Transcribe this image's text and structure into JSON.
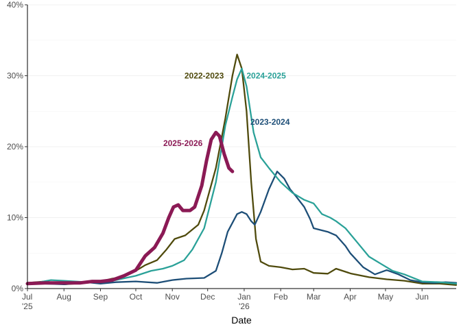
{
  "chart_data": {
    "type": "line",
    "title": "",
    "xlabel": "Date",
    "ylabel": "",
    "x_unit": "days since Jul 1",
    "xlim": [
      0,
      364
    ],
    "ylim": [
      0,
      40
    ],
    "grid": true,
    "y_ticks": [
      {
        "value": 0,
        "label": "0%"
      },
      {
        "value": 10,
        "label": "10%"
      },
      {
        "value": 20,
        "label": "20%"
      },
      {
        "value": 30,
        "label": "30%"
      },
      {
        "value": 40,
        "label": "40%"
      }
    ],
    "x_ticks": [
      {
        "value": 0,
        "label": "Jul",
        "sub": "'25"
      },
      {
        "value": 31,
        "label": "Aug",
        "sub": ""
      },
      {
        "value": 62,
        "label": "Sep",
        "sub": ""
      },
      {
        "value": 92,
        "label": "Oct",
        "sub": ""
      },
      {
        "value": 123,
        "label": "Nov",
        "sub": ""
      },
      {
        "value": 153,
        "label": "Dec",
        "sub": ""
      },
      {
        "value": 184,
        "label": "Jan",
        "sub": "'26"
      },
      {
        "value": 215,
        "label": "Feb",
        "sub": ""
      },
      {
        "value": 243,
        "label": "Mar",
        "sub": ""
      },
      {
        "value": 274,
        "label": "Apr",
        "sub": ""
      },
      {
        "value": 304,
        "label": "May",
        "sub": ""
      },
      {
        "value": 335,
        "label": "Jun",
        "sub": ""
      }
    ],
    "series": [
      {
        "name": "2022-2023",
        "color": "#4f4a0c",
        "width": 2.3,
        "label_anchor": [
          150,
          30
        ],
        "points": [
          [
            0,
            0.8
          ],
          [
            15,
            1.0
          ],
          [
            31,
            0.6
          ],
          [
            50,
            0.8
          ],
          [
            62,
            1.0
          ],
          [
            72,
            1.4
          ],
          [
            80,
            1.6
          ],
          [
            92,
            2.5
          ],
          [
            100,
            3.3
          ],
          [
            110,
            4.0
          ],
          [
            118,
            5.5
          ],
          [
            125,
            7.0
          ],
          [
            134,
            7.5
          ],
          [
            145,
            9.0
          ],
          [
            150,
            11.0
          ],
          [
            160,
            17.0
          ],
          [
            168,
            24.0
          ],
          [
            174,
            30.0
          ],
          [
            178,
            33.0
          ],
          [
            182,
            31.0
          ],
          [
            186,
            25.0
          ],
          [
            190,
            15.0
          ],
          [
            194,
            7.0
          ],
          [
            198,
            3.8
          ],
          [
            205,
            3.2
          ],
          [
            215,
            3.0
          ],
          [
            225,
            2.7
          ],
          [
            235,
            2.8
          ],
          [
            243,
            2.2
          ],
          [
            255,
            2.1
          ],
          [
            262,
            2.8
          ],
          [
            275,
            2.1
          ],
          [
            290,
            1.6
          ],
          [
            305,
            1.3
          ],
          [
            320,
            1.1
          ],
          [
            335,
            0.7
          ],
          [
            350,
            0.7
          ],
          [
            364,
            0.5
          ]
        ]
      },
      {
        "name": "2023-2024",
        "color": "#1d4e77",
        "width": 2.3,
        "label_anchor": [
          206,
          23.5
        ],
        "points": [
          [
            0,
            0.8
          ],
          [
            15,
            0.7
          ],
          [
            31,
            0.6
          ],
          [
            50,
            0.9
          ],
          [
            62,
            0.7
          ],
          [
            75,
            0.9
          ],
          [
            92,
            1.0
          ],
          [
            110,
            0.8
          ],
          [
            123,
            1.2
          ],
          [
            135,
            1.4
          ],
          [
            150,
            1.5
          ],
          [
            160,
            2.5
          ],
          [
            165,
            5.0
          ],
          [
            170,
            8.0
          ],
          [
            178,
            10.5
          ],
          [
            182,
            10.8
          ],
          [
            186,
            10.5
          ],
          [
            190,
            9.5
          ],
          [
            193,
            9.0
          ],
          [
            198,
            10.8
          ],
          [
            205,
            14.0
          ],
          [
            212,
            16.5
          ],
          [
            218,
            15.5
          ],
          [
            223,
            14.0
          ],
          [
            228,
            13.0
          ],
          [
            235,
            11.5
          ],
          [
            240,
            9.8
          ],
          [
            243,
            8.5
          ],
          [
            255,
            8.0
          ],
          [
            262,
            7.5
          ],
          [
            270,
            6.0
          ],
          [
            274,
            5.0
          ],
          [
            285,
            3.0
          ],
          [
            295,
            2.0
          ],
          [
            305,
            2.6
          ],
          [
            315,
            2.0
          ],
          [
            325,
            1.2
          ],
          [
            335,
            0.9
          ],
          [
            345,
            0.8
          ],
          [
            355,
            0.9
          ],
          [
            364,
            0.8
          ]
        ]
      },
      {
        "name": "2024-2025",
        "color": "#2aa198",
        "width": 2.3,
        "label_anchor": [
          186,
          30
        ],
        "points": [
          [
            0,
            0.7
          ],
          [
            10,
            0.9
          ],
          [
            20,
            1.2
          ],
          [
            31,
            1.1
          ],
          [
            50,
            0.9
          ],
          [
            62,
            1.0
          ],
          [
            75,
            1.2
          ],
          [
            92,
            1.8
          ],
          [
            105,
            2.5
          ],
          [
            115,
            2.8
          ],
          [
            123,
            3.2
          ],
          [
            133,
            4.0
          ],
          [
            140,
            5.5
          ],
          [
            150,
            8.5
          ],
          [
            160,
            15.0
          ],
          [
            168,
            23.0
          ],
          [
            174,
            27.0
          ],
          [
            178,
            29.5
          ],
          [
            182,
            31.0
          ],
          [
            186,
            28.5
          ],
          [
            192,
            22.0
          ],
          [
            198,
            18.5
          ],
          [
            205,
            17.0
          ],
          [
            215,
            15.0
          ],
          [
            225,
            13.5
          ],
          [
            235,
            12.5
          ],
          [
            243,
            12.0
          ],
          [
            250,
            10.5
          ],
          [
            257,
            10.0
          ],
          [
            262,
            9.5
          ],
          [
            270,
            8.5
          ],
          [
            280,
            6.5
          ],
          [
            290,
            4.5
          ],
          [
            300,
            3.5
          ],
          [
            310,
            2.5
          ],
          [
            320,
            2.0
          ],
          [
            335,
            1.0
          ],
          [
            350,
            0.9
          ],
          [
            364,
            0.7
          ]
        ]
      },
      {
        "name": "2025-2026",
        "color": "#8b1a55",
        "width": 5,
        "label_anchor": [
          132,
          20.5
        ],
        "points": [
          [
            0,
            0.7
          ],
          [
            15,
            0.8
          ],
          [
            31,
            0.8
          ],
          [
            45,
            0.8
          ],
          [
            55,
            1.0
          ],
          [
            62,
            1.0
          ],
          [
            72,
            1.2
          ],
          [
            82,
            1.8
          ],
          [
            92,
            2.6
          ],
          [
            100,
            4.6
          ],
          [
            108,
            5.8
          ],
          [
            115,
            7.8
          ],
          [
            120,
            10.0
          ],
          [
            124,
            11.5
          ],
          [
            128,
            11.8
          ],
          [
            132,
            11.0
          ],
          [
            138,
            11.0
          ],
          [
            142,
            11.5
          ],
          [
            148,
            14.5
          ],
          [
            152,
            18.0
          ],
          [
            156,
            21.0
          ],
          [
            160,
            22.0
          ],
          [
            163,
            21.5
          ],
          [
            167,
            19.0
          ],
          [
            171,
            17.0
          ],
          [
            174,
            16.5
          ]
        ]
      }
    ]
  }
}
